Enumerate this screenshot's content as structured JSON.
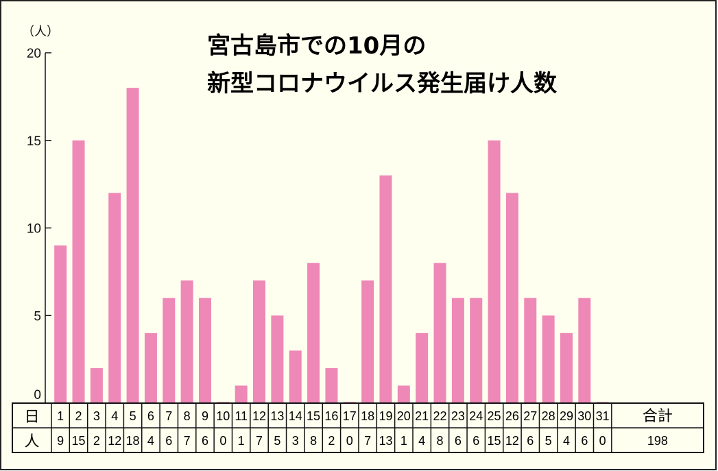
{
  "chart_data": {
    "type": "bar",
    "title_line1": "宮古島市での10月の",
    "title_line2": "新型コロナウイルス発生届け人数",
    "unit_label": "（人）",
    "ylim": [
      0,
      20
    ],
    "yticks": [
      "0",
      "5",
      "10",
      "15",
      "20"
    ],
    "categories": [
      "1",
      "2",
      "3",
      "4",
      "5",
      "6",
      "7",
      "8",
      "9",
      "10",
      "11",
      "12",
      "13",
      "14",
      "15",
      "16",
      "17",
      "18",
      "19",
      "20",
      "21",
      "22",
      "23",
      "24",
      "25",
      "26",
      "27",
      "28",
      "29",
      "30",
      "31"
    ],
    "values": [
      9,
      15,
      2,
      12,
      18,
      4,
      6,
      7,
      6,
      0,
      1,
      7,
      5,
      3,
      8,
      2,
      0,
      7,
      13,
      1,
      4,
      8,
      6,
      6,
      15,
      12,
      6,
      5,
      4,
      6,
      0
    ],
    "bar_color": "#ee88b6",
    "background_color": "#fffff0"
  },
  "table": {
    "row1_header": "日",
    "row2_header": "人",
    "total_header": "合計",
    "total_value": "198"
  }
}
